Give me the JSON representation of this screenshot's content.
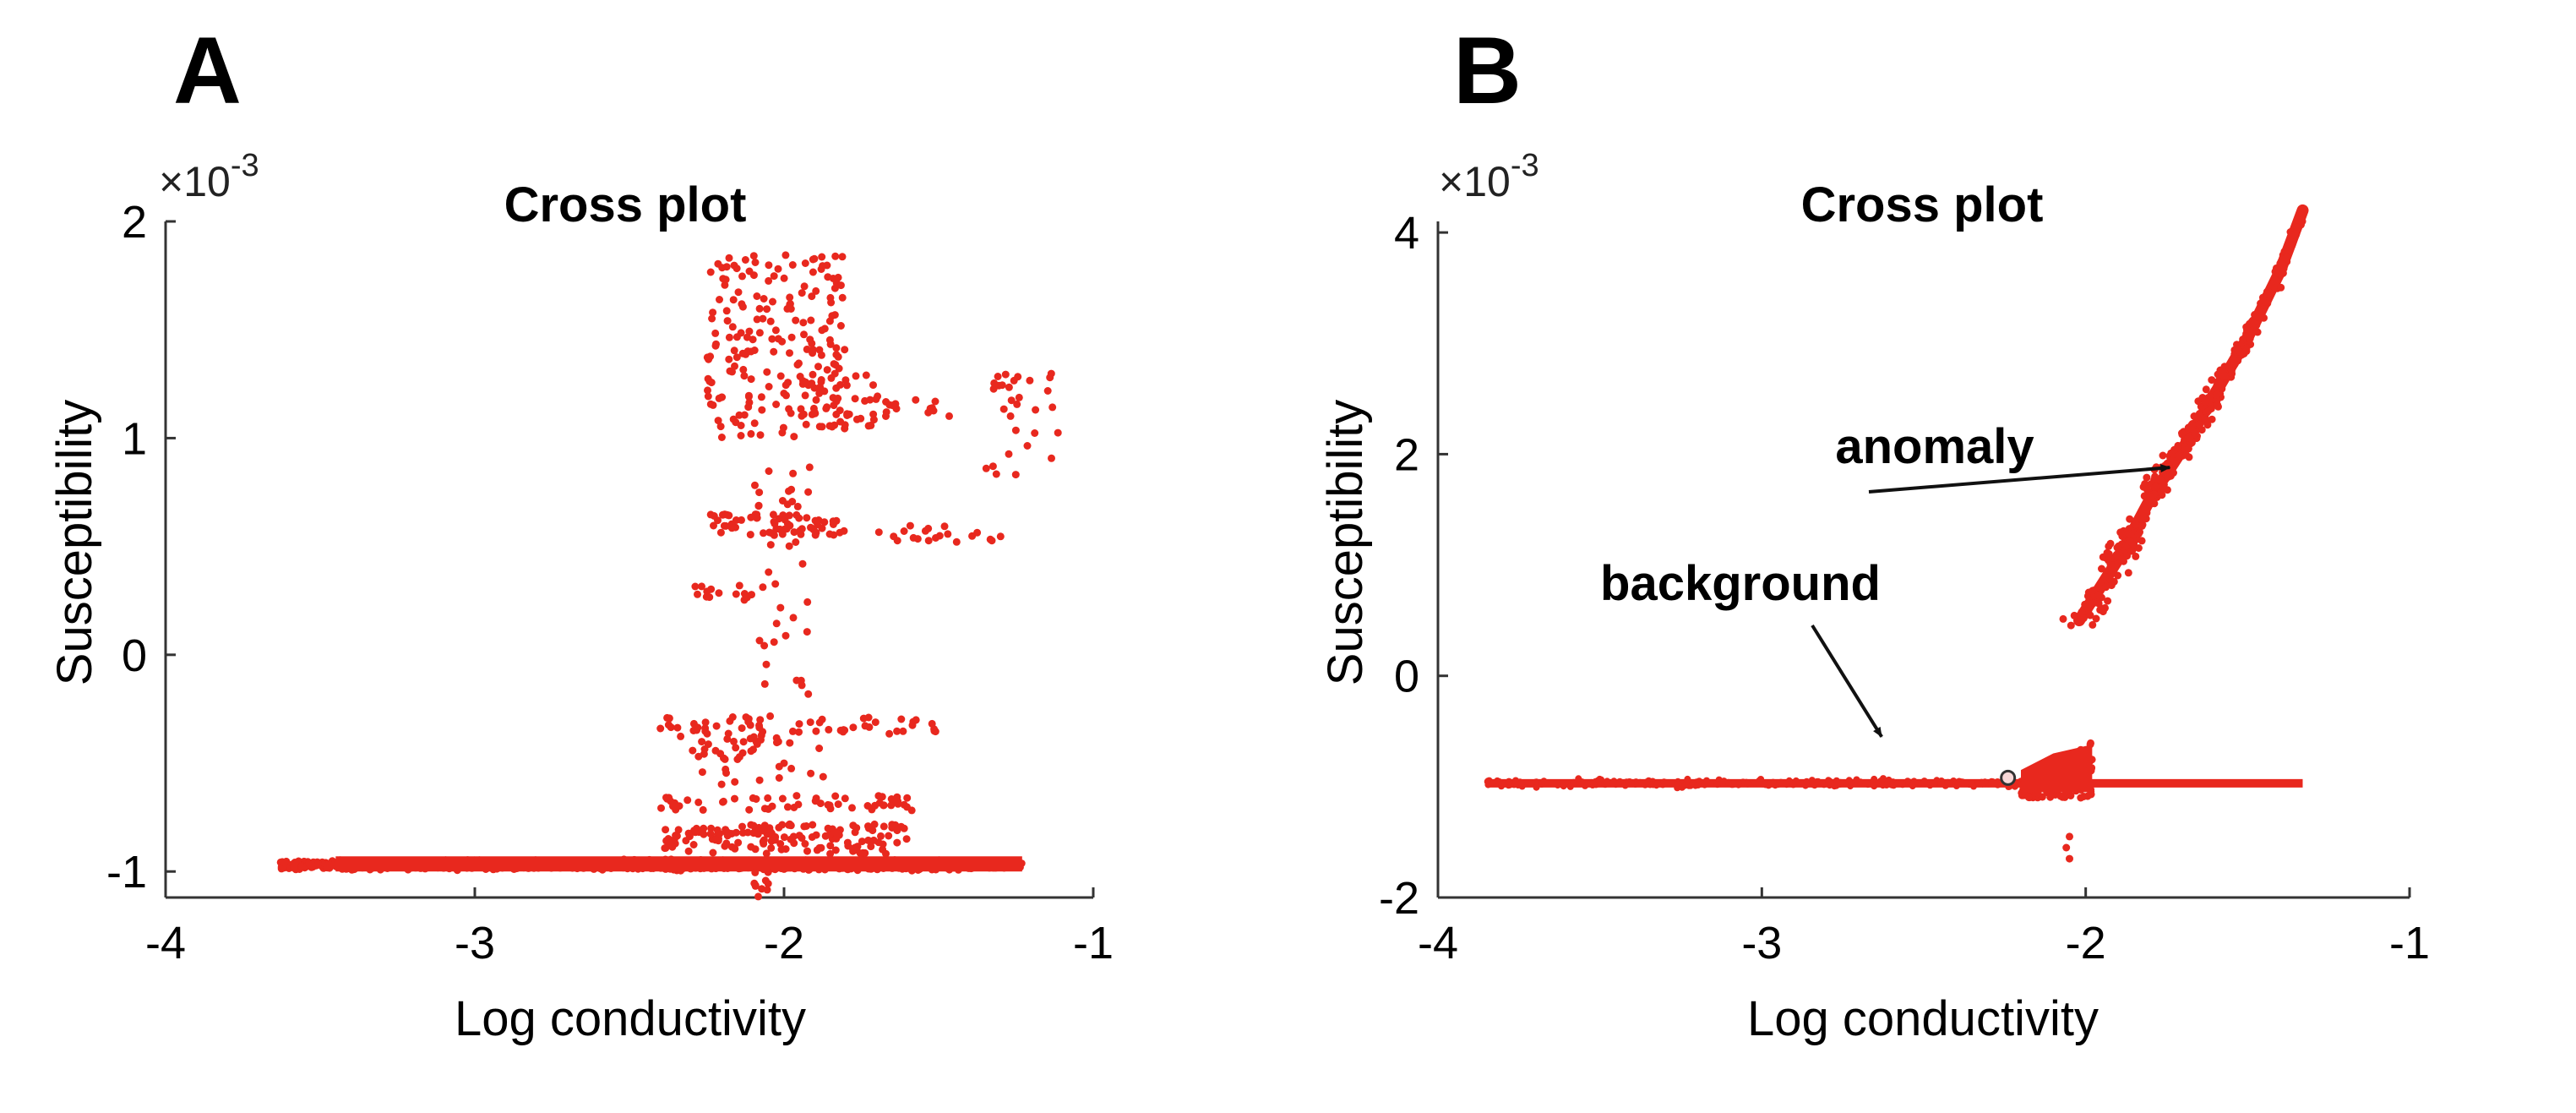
{
  "figure": {
    "panels": [
      {
        "letter": "A",
        "title": "Cross plot",
        "xlabel": "Log conductivity",
        "ylabel": "Susceptibility",
        "exponent_base": "×10",
        "exponent_power": "-3"
      },
      {
        "letter": "B",
        "title": "Cross plot",
        "xlabel": "Log conductivity",
        "ylabel": "Susceptibility",
        "exponent_base": "×10",
        "exponent_power": "-3"
      }
    ]
  },
  "chart_data": [
    {
      "type": "scatter",
      "panel": "A",
      "title": "Cross plot",
      "xlabel": "Log conductivity",
      "ylabel": "Susceptibility",
      "y_scale_note": "×10^-3",
      "xlim": [
        -4,
        -1
      ],
      "ylim": [
        -1.12,
        2.0
      ],
      "xticks": [
        -4,
        -3,
        -2,
        -1
      ],
      "xtick_labels": [
        "-4",
        "-3",
        "-2",
        "-1"
      ],
      "yticks": [
        -1,
        0,
        1,
        2
      ],
      "ytick_labels": [
        "-1",
        "0",
        "1",
        "2"
      ],
      "color": "#e8281e",
      "background_band": {
        "x_range": [
          -3.63,
          -1.23
        ],
        "y_value": -0.97,
        "y_spread": 0.03,
        "n": 1400
      },
      "clusters": [
        {
          "x_range": [
            -2.25,
            -1.8
          ],
          "y_range": [
            1.0,
            1.85
          ],
          "n": 200
        },
        {
          "x_range": [
            -1.95,
            -1.7
          ],
          "y_range": [
            1.05,
            1.3
          ],
          "n": 35
        },
        {
          "x_range": [
            -1.7,
            -1.45
          ],
          "y_range": [
            1.1,
            1.2
          ],
          "n": 15
        },
        {
          "x_range": [
            -1.35,
            -1.1
          ],
          "y_range": [
            0.8,
            1.3
          ],
          "n": 30
        },
        {
          "x_range": [
            -2.25,
            -1.8
          ],
          "y_range": [
            0.55,
            0.65
          ],
          "n": 60
        },
        {
          "x_range": [
            -1.7,
            -1.25
          ],
          "y_range": [
            0.52,
            0.6
          ],
          "n": 20
        },
        {
          "x_range": [
            -2.35,
            -2.1
          ],
          "y_range": [
            0.25,
            0.32
          ],
          "n": 14
        },
        {
          "x_range": [
            -2.1,
            -1.9
          ],
          "y_range": [
            -0.2,
            0.9
          ],
          "n": 40
        },
        {
          "x_range": [
            -2.4,
            -1.5
          ],
          "y_range": [
            -0.28,
            -0.38
          ],
          "n": 60
        },
        {
          "x_range": [
            -2.3,
            -1.85
          ],
          "y_range": [
            -0.38,
            -0.6
          ],
          "n": 40
        },
        {
          "x_range": [
            -2.4,
            -1.55
          ],
          "y_range": [
            -0.65,
            -0.72
          ],
          "n": 55
        },
        {
          "x_range": [
            -2.4,
            -1.6
          ],
          "y_range": [
            -0.78,
            -0.92
          ],
          "n": 150
        },
        {
          "x_range": [
            -2.1,
            -2.05
          ],
          "y_range": [
            -1.0,
            -1.12
          ],
          "n": 10
        }
      ]
    },
    {
      "type": "scatter",
      "panel": "B",
      "title": "Cross plot",
      "xlabel": "Log conductivity",
      "ylabel": "Susceptibility",
      "y_scale_note": "×10^-3",
      "xlim": [
        -4,
        -1
      ],
      "ylim": [
        -2,
        4.1
      ],
      "xticks": [
        -4,
        -3,
        -2,
        -1
      ],
      "xtick_labels": [
        "-4",
        "-3",
        "-2",
        "-1"
      ],
      "yticks": [
        -2,
        0,
        2,
        4
      ],
      "ytick_labels": [
        "-2",
        "0",
        "2",
        "4"
      ],
      "color": "#e8281e",
      "background_line": {
        "x_range": [
          -3.85,
          -1.33
        ],
        "y_value": -0.97
      },
      "background_blob": {
        "x_range": [
          -2.2,
          -1.98
        ],
        "y_range": [
          -1.1,
          -0.6
        ]
      },
      "anomaly_curve": {
        "x": [
          -2.02,
          -1.9,
          -1.8,
          -1.7,
          -1.6,
          -1.5,
          -1.4,
          -1.33
        ],
        "y": [
          0.5,
          1.05,
          1.6,
          2.05,
          2.55,
          3.05,
          3.65,
          4.2
        ]
      },
      "stray_points": {
        "x": [
          -2.05,
          -2.06,
          -2.05
        ],
        "y": [
          -1.45,
          -1.55,
          -1.65
        ]
      },
      "annotations": [
        {
          "text": "anomaly",
          "arrow_to_x": -1.74,
          "arrow_to_y": 1.88
        },
        {
          "text": "background",
          "arrow_to_x": -2.63,
          "arrow_to_y": -0.55
        }
      ]
    }
  ]
}
